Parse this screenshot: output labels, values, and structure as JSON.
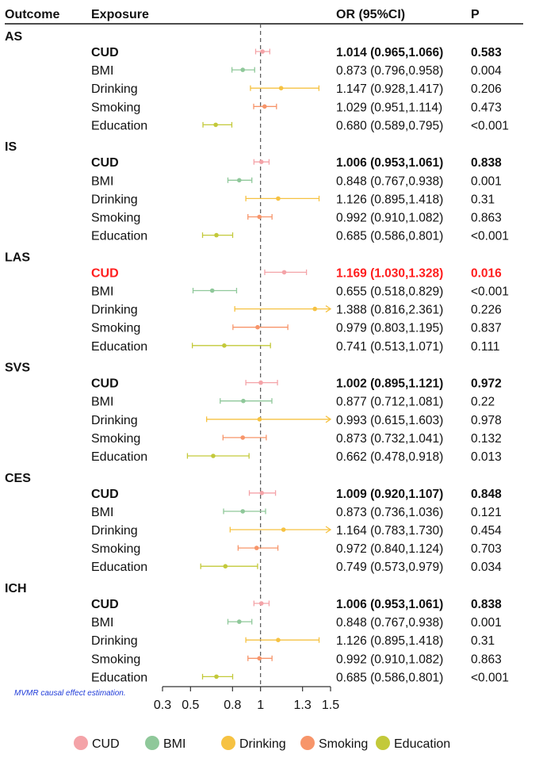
{
  "chart_data": {
    "type": "forest",
    "title": "",
    "columns": {
      "outcome": "Outcome",
      "exposure": "Exposure",
      "or": "OR (95%CI)",
      "p": "P"
    },
    "xaxis": {
      "ticks": [
        0.3,
        0.5,
        0.8,
        1,
        1.3,
        1.5
      ],
      "tick_labels": [
        "0.3",
        "0.5",
        "0.8",
        "1",
        "1.3",
        "1.5"
      ],
      "reference": 1,
      "range": [
        0.3,
        1.5
      ]
    },
    "note": "MVMR causal effect estimation.",
    "legend": [
      {
        "label": "CUD",
        "color": "#f4a3a8"
      },
      {
        "label": "BMI",
        "color": "#8fc89a"
      },
      {
        "label": "Drinking",
        "color": "#f6c242"
      },
      {
        "label": "Smoking",
        "color": "#f7956a"
      },
      {
        "label": "Education",
        "color": "#c3c93a"
      }
    ],
    "groups": [
      {
        "outcome": "AS",
        "rows": [
          {
            "exposure": "CUD",
            "or": 1.014,
            "lo": 0.965,
            "hi": 1.066,
            "or_text": "1.014 (0.965,1.066)",
            "p": "0.583",
            "style": "bold"
          },
          {
            "exposure": "BMI",
            "or": 0.873,
            "lo": 0.796,
            "hi": 0.958,
            "or_text": "0.873 (0.796,0.958)",
            "p": "0.004",
            "style": "normal"
          },
          {
            "exposure": "Drinking",
            "or": 1.147,
            "lo": 0.928,
            "hi": 1.417,
            "or_text": "1.147 (0.928,1.417)",
            "p": "0.206",
            "style": "normal"
          },
          {
            "exposure": "Smoking",
            "or": 1.029,
            "lo": 0.951,
            "hi": 1.114,
            "or_text": "1.029 (0.951,1.114)",
            "p": "0.473",
            "style": "normal"
          },
          {
            "exposure": "Education",
            "or": 0.68,
            "lo": 0.589,
            "hi": 0.795,
            "or_text": "0.680 (0.589,0.795)",
            "p": "<0.001",
            "style": "normal"
          }
        ]
      },
      {
        "outcome": "IS",
        "rows": [
          {
            "exposure": "CUD",
            "or": 1.006,
            "lo": 0.953,
            "hi": 1.061,
            "or_text": "1.006 (0.953,1.061)",
            "p": "0.838",
            "style": "bold"
          },
          {
            "exposure": "BMI",
            "or": 0.848,
            "lo": 0.767,
            "hi": 0.938,
            "or_text": "0.848 (0.767,0.938)",
            "p": "0.001",
            "style": "normal"
          },
          {
            "exposure": "Drinking",
            "or": 1.126,
            "lo": 0.895,
            "hi": 1.418,
            "or_text": "1.126 (0.895,1.418)",
            "p": "0.31",
            "style": "normal"
          },
          {
            "exposure": "Smoking",
            "or": 0.992,
            "lo": 0.91,
            "hi": 1.082,
            "or_text": "0.992 (0.910,1.082)",
            "p": "0.863",
            "style": "normal"
          },
          {
            "exposure": "Education",
            "or": 0.685,
            "lo": 0.586,
            "hi": 0.801,
            "or_text": "0.685 (0.586,0.801)",
            "p": "<0.001",
            "style": "normal"
          }
        ]
      },
      {
        "outcome": "LAS",
        "rows": [
          {
            "exposure": "CUD",
            "or": 1.169,
            "lo": 1.03,
            "hi": 1.328,
            "or_text": "1.169 (1.030,1.328)",
            "p": "0.016",
            "style": "highlight"
          },
          {
            "exposure": "BMI",
            "or": 0.655,
            "lo": 0.518,
            "hi": 0.829,
            "or_text": "0.655 (0.518,0.829)",
            "p": "<0.001",
            "style": "normal"
          },
          {
            "exposure": "Drinking",
            "or": 1.388,
            "lo": 0.816,
            "hi": 2.361,
            "or_text": "1.388 (0.816,2.361)",
            "p": "0.226",
            "style": "normal"
          },
          {
            "exposure": "Smoking",
            "or": 0.979,
            "lo": 0.803,
            "hi": 1.195,
            "or_text": "0.979 (0.803,1.195)",
            "p": "0.837",
            "style": "normal"
          },
          {
            "exposure": "Education",
            "or": 0.741,
            "lo": 0.513,
            "hi": 1.071,
            "or_text": "0.741 (0.513,1.071)",
            "p": "0.111",
            "style": "normal"
          }
        ]
      },
      {
        "outcome": "SVS",
        "rows": [
          {
            "exposure": "CUD",
            "or": 1.002,
            "lo": 0.895,
            "hi": 1.121,
            "or_text": "1.002 (0.895,1.121)",
            "p": "0.972",
            "style": "bold"
          },
          {
            "exposure": "BMI",
            "or": 0.877,
            "lo": 0.712,
            "hi": 1.081,
            "or_text": "0.877 (0.712,1.081)",
            "p": "0.22",
            "style": "normal"
          },
          {
            "exposure": "Drinking",
            "or": 0.993,
            "lo": 0.615,
            "hi": 1.603,
            "or_text": "0.993 (0.615,1.603)",
            "p": "0.978",
            "style": "normal"
          },
          {
            "exposure": "Smoking",
            "or": 0.873,
            "lo": 0.732,
            "hi": 1.041,
            "or_text": "0.873 (0.732,1.041)",
            "p": "0.132",
            "style": "normal"
          },
          {
            "exposure": "Education",
            "or": 0.662,
            "lo": 0.478,
            "hi": 0.918,
            "or_text": "0.662 (0.478,0.918)",
            "p": "0.013",
            "style": "normal"
          }
        ]
      },
      {
        "outcome": "CES",
        "rows": [
          {
            "exposure": "CUD",
            "or": 1.009,
            "lo": 0.92,
            "hi": 1.107,
            "or_text": "1.009 (0.920,1.107)",
            "p": "0.848",
            "style": "bold"
          },
          {
            "exposure": "BMI",
            "or": 0.873,
            "lo": 0.736,
            "hi": 1.036,
            "or_text": "0.873 (0.736,1.036)",
            "p": "0.121",
            "style": "normal"
          },
          {
            "exposure": "Drinking",
            "or": 1.164,
            "lo": 0.783,
            "hi": 1.73,
            "or_text": "1.164 (0.783,1.730)",
            "p": "0.454",
            "style": "normal"
          },
          {
            "exposure": "Smoking",
            "or": 0.972,
            "lo": 0.84,
            "hi": 1.124,
            "or_text": "0.972 (0.840,1.124)",
            "p": "0.703",
            "style": "normal"
          },
          {
            "exposure": "Education",
            "or": 0.749,
            "lo": 0.573,
            "hi": 0.979,
            "or_text": "0.749 (0.573,0.979)",
            "p": "0.034",
            "style": "normal"
          }
        ]
      },
      {
        "outcome": "ICH",
        "rows": [
          {
            "exposure": "CUD",
            "or": 1.006,
            "lo": 0.953,
            "hi": 1.061,
            "or_text": "1.006 (0.953,1.061)",
            "p": "0.838",
            "style": "bold"
          },
          {
            "exposure": "BMI",
            "or": 0.848,
            "lo": 0.767,
            "hi": 0.938,
            "or_text": "0.848 (0.767,0.938)",
            "p": "0.001",
            "style": "normal"
          },
          {
            "exposure": "Drinking",
            "or": 1.126,
            "lo": 0.895,
            "hi": 1.418,
            "or_text": "1.126 (0.895,1.418)",
            "p": "0.31",
            "style": "normal"
          },
          {
            "exposure": "Smoking",
            "or": 0.992,
            "lo": 0.91,
            "hi": 1.082,
            "or_text": "0.992 (0.910,1.082)",
            "p": "0.863",
            "style": "normal"
          },
          {
            "exposure": "Education",
            "or": 0.685,
            "lo": 0.586,
            "hi": 0.801,
            "or_text": "0.685 (0.586,0.801)",
            "p": "<0.001",
            "style": "normal"
          }
        ]
      }
    ]
  }
}
